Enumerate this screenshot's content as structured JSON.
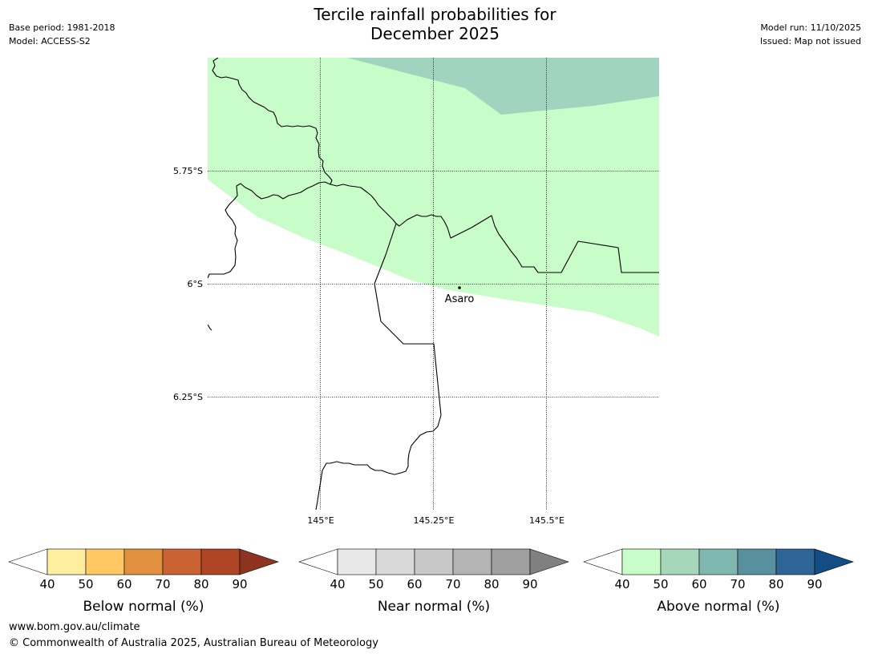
{
  "header": {
    "title_line1": "Tercile rainfall probabilities for",
    "title_line2": "December 2025",
    "base_period": "Base period: 1981-2018",
    "model": "Model: ACCESS-S2",
    "model_run": "Model run: 11/10/2025",
    "issued": "Issued: Map not issued"
  },
  "map": {
    "lat_labels": [
      "5.75°S",
      "6°S",
      "6.25°S"
    ],
    "lon_labels": [
      "145°E",
      "145.25°E",
      "145.5°E"
    ],
    "place_label": "Asaro",
    "colors": {
      "above_40_50": "#c8fcc8",
      "above_50_60": "#a0d4be",
      "border": "#000000",
      "gridline": "#000000"
    }
  },
  "legends": [
    {
      "label": "Below normal (%)",
      "ticks": [
        "40",
        "50",
        "60",
        "70",
        "80",
        "90"
      ],
      "colors": [
        "#ffffff",
        "#ffeda0",
        "#fec862",
        "#e0903e",
        "#cb6233",
        "#ae4626",
        "#8f3321"
      ]
    },
    {
      "label": "Near normal (%)",
      "ticks": [
        "40",
        "50",
        "60",
        "70",
        "80",
        "90"
      ],
      "colors": [
        "#ffffff",
        "#e8e8e8",
        "#d9d9d9",
        "#c8c8c8",
        "#b4b4b4",
        "#a0a0a0",
        "#808080"
      ]
    },
    {
      "label": "Above normal (%)",
      "ticks": [
        "40",
        "50",
        "60",
        "70",
        "80",
        "90"
      ],
      "colors": [
        "#ffffff",
        "#c8fcc8",
        "#a6d7ba",
        "#80b7b0",
        "#5990a0",
        "#2e6496",
        "#144d84"
      ]
    }
  ],
  "footer": {
    "url": "www.bom.gov.au/climate",
    "copyright": "© Commonwealth of Australia 2025, Australian Bureau of Meteorology"
  }
}
